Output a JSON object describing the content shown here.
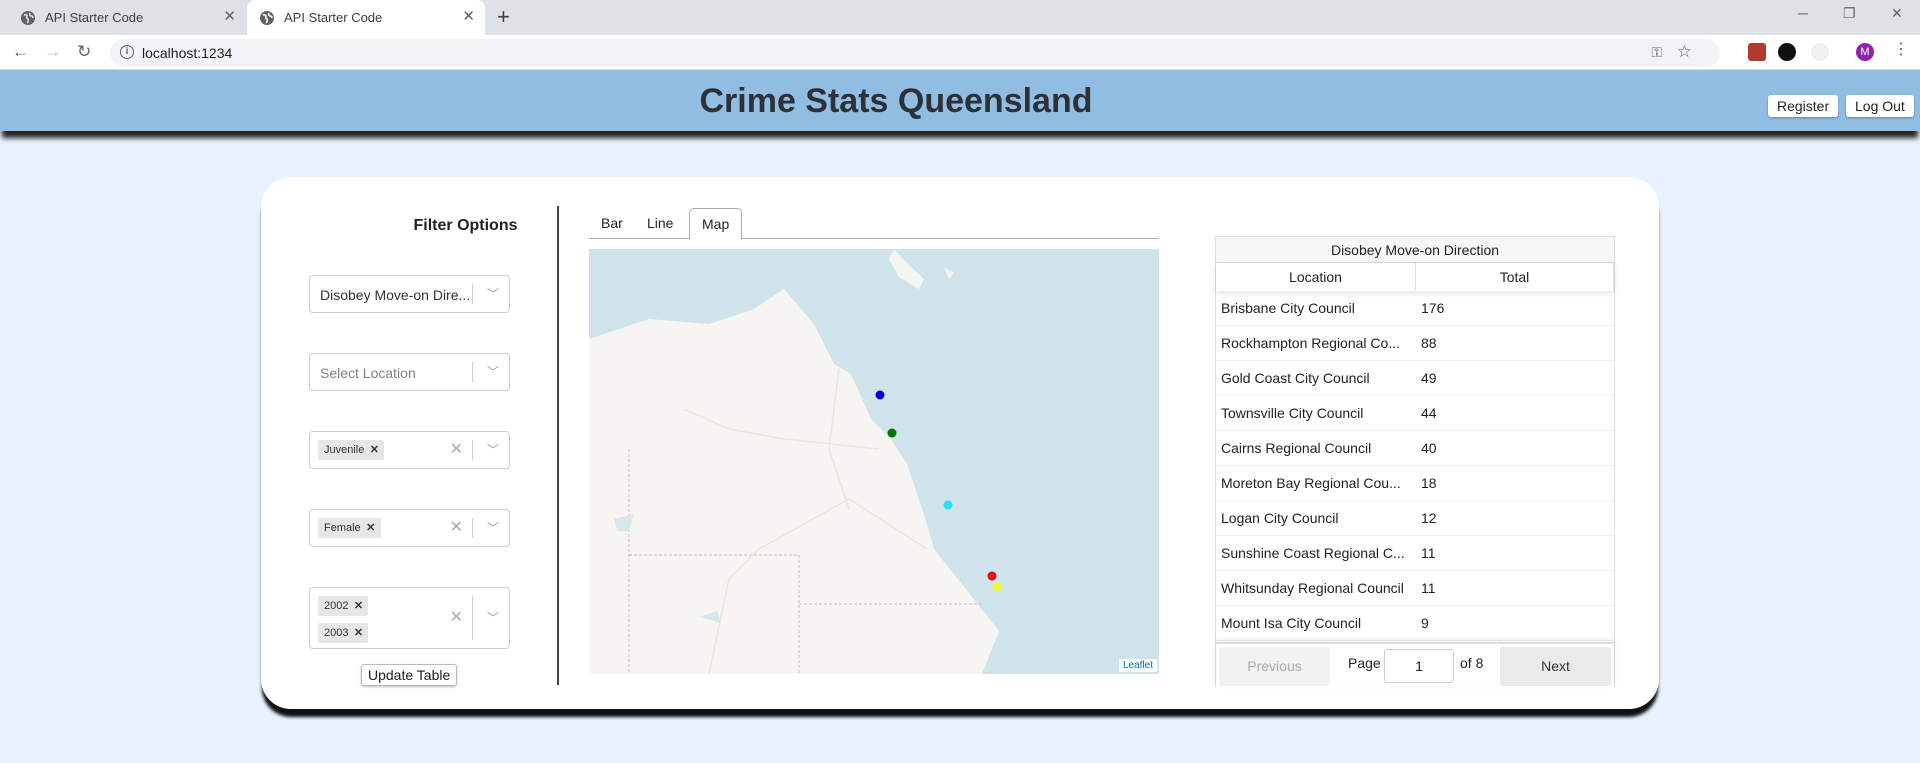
{
  "browser": {
    "tabs": [
      {
        "title": "API Starter Code",
        "active": false
      },
      {
        "title": "API Starter Code",
        "active": true
      }
    ],
    "url": "localhost:1234",
    "profile_initial": "M"
  },
  "header": {
    "title": "Crime Stats Queensland",
    "register_label": "Register",
    "logout_label": "Log Out"
  },
  "filters": {
    "title": "Filter Options",
    "offence": "Disobey Move-on Dire...",
    "location_placeholder": "Select Location",
    "age_chips": [
      "Juvenile"
    ],
    "gender_chips": [
      "Female"
    ],
    "year_chips": [
      "2002",
      "2003"
    ],
    "update_label": "Update Table"
  },
  "chart_tabs": [
    "Bar",
    "Line",
    "Map"
  ],
  "active_tab": "Map",
  "map": {
    "attribution": "Leaflet",
    "marker_colors": [
      "#0000cc",
      "#007700",
      "#22e5ee",
      "#e01010",
      "#f5f536"
    ]
  },
  "table": {
    "title": "Disobey Move-on Direction",
    "columns": [
      "Location",
      "Total"
    ],
    "rows": [
      [
        "Brisbane City Council",
        "176"
      ],
      [
        "Rockhampton Regional Co...",
        "88"
      ],
      [
        "Gold Coast City Council",
        "49"
      ],
      [
        "Townsville City Council",
        "44"
      ],
      [
        "Cairns Regional Council",
        "40"
      ],
      [
        "Moreton Bay Regional Cou...",
        "18"
      ],
      [
        "Logan City Council",
        "12"
      ],
      [
        "Sunshine Coast Regional C...",
        "11"
      ],
      [
        "Whitsunday Regional Council",
        "11"
      ],
      [
        "Mount Isa City Council",
        "9"
      ]
    ],
    "pagination": {
      "previous_label": "Previous",
      "page_label": "Page",
      "page_value": "1",
      "of_label": "of 8",
      "next_label": "Next"
    }
  }
}
